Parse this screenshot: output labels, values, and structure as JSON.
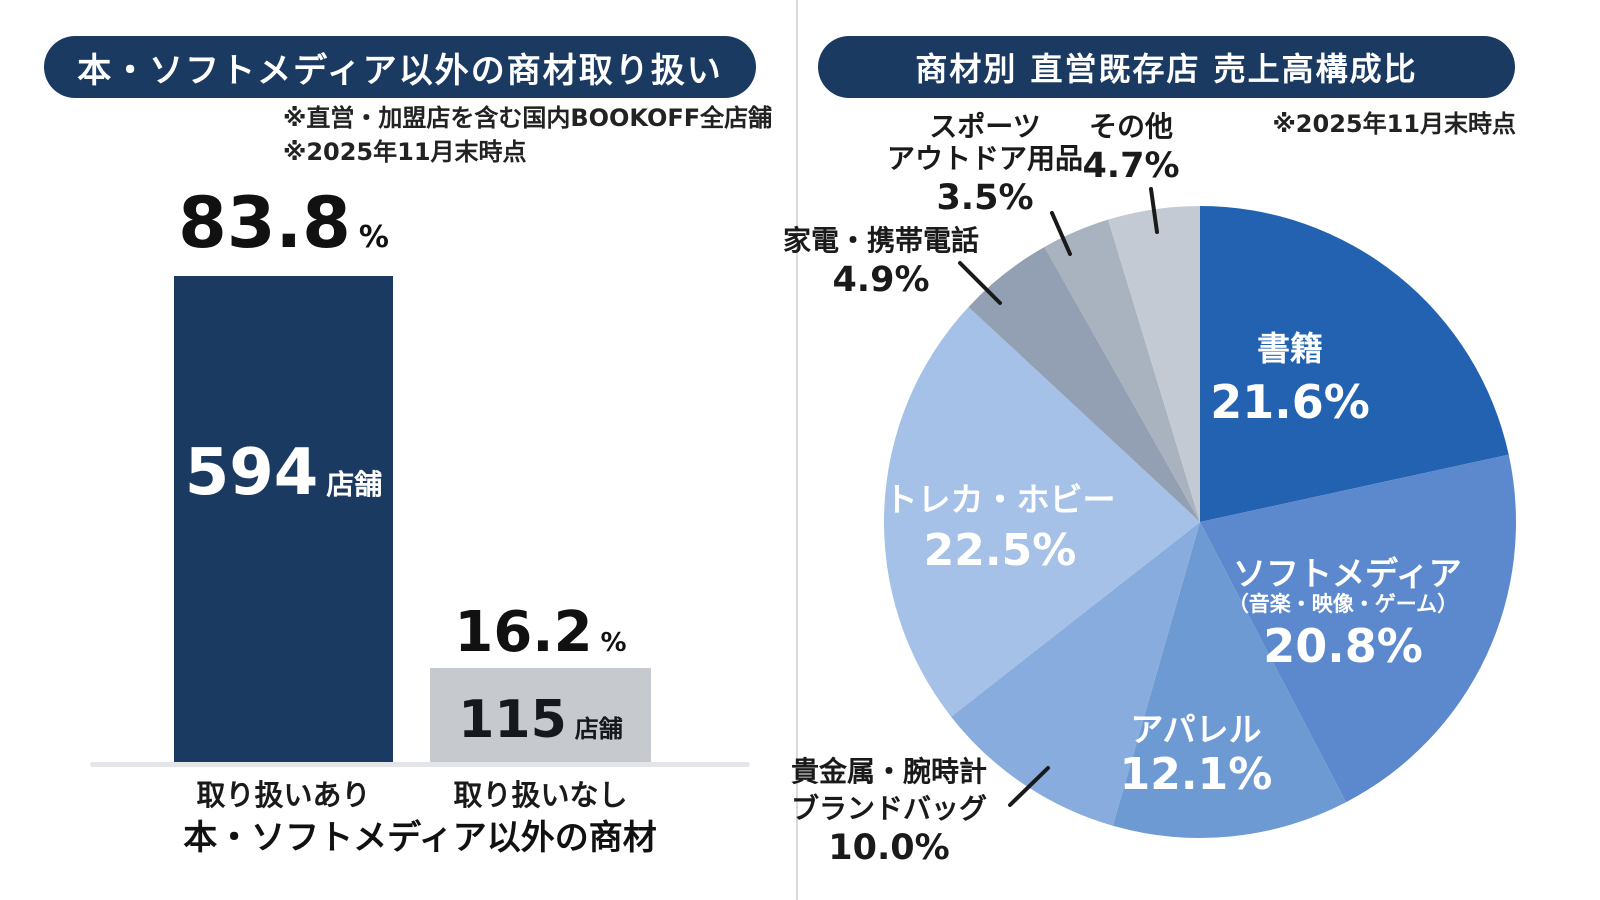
{
  "left_panel": {
    "title": "本・ソフトメディア以外の商材取り扱い",
    "notes": [
      "※直営・加盟店を含む国内BOOKOFF全店舗",
      "※2025年11月末時点"
    ]
  },
  "right_panel": {
    "title": "商材別 直営既存店 売上高構成比",
    "note": "※2025年11月末時点"
  },
  "chart_data": [
    {
      "type": "bar",
      "title": "本・ソフトメディア以外の商材取り扱い",
      "categories": [
        "取り扱いあり",
        "取り扱いなし"
      ],
      "values": [
        83.8,
        16.2
      ],
      "value_unit": "%",
      "bar_labels": [
        "594",
        "115"
      ],
      "bar_label_unit": "店舗",
      "xlabel": "本・ソフトメディア以外の商材",
      "ylabel": "",
      "ylim": [
        0,
        100
      ],
      "grid": false,
      "legend": false,
      "colors": [
        "#1b3a62",
        "#c6cacf"
      ],
      "notes": [
        "※直営・加盟店を含む国内BOOKOFF全店舗",
        "※2025年11月末時点"
      ]
    },
    {
      "type": "pie",
      "title": "商材別 直営既存店 売上高構成比",
      "note": "※2025年11月末時点",
      "start_angle": "top",
      "direction": "clockwise",
      "legend": false,
      "slices": [
        {
          "label": "書籍",
          "value": 21.6,
          "pct": "21.6%",
          "color": "#2262b0",
          "label_position": "inside"
        },
        {
          "label": "ソフトメディア",
          "sublabel": "（音楽・映像・ゲーム）",
          "value": 20.8,
          "pct": "20.8%",
          "color": "#5c89cd",
          "label_position": "inside"
        },
        {
          "label": "アパレル",
          "value": 12.1,
          "pct": "12.1%",
          "color": "#6d9ad3",
          "label_position": "inside"
        },
        {
          "label": "貴金属・腕時計",
          "label2": "ブランドバッグ",
          "value": 10.0,
          "pct": "10.0%",
          "color": "#87acdd",
          "label_position": "outside"
        },
        {
          "label": "トレカ・ホビー",
          "value": 22.5,
          "pct": "22.5%",
          "color": "#a5c1e8",
          "label_position": "inside"
        },
        {
          "label": "家電・携帯電話",
          "value": 4.9,
          "pct": "4.9%",
          "color": "#93a0b3",
          "label_position": "outside"
        },
        {
          "label": "スポーツ",
          "label2": "アウトドア用品",
          "value": 3.5,
          "pct": "3.5%",
          "color": "#a9b2bf",
          "label_position": "outside"
        },
        {
          "label": "その他",
          "value": 4.7,
          "pct": "4.7%",
          "color": "#c4cad3",
          "label_position": "outside"
        }
      ]
    }
  ]
}
